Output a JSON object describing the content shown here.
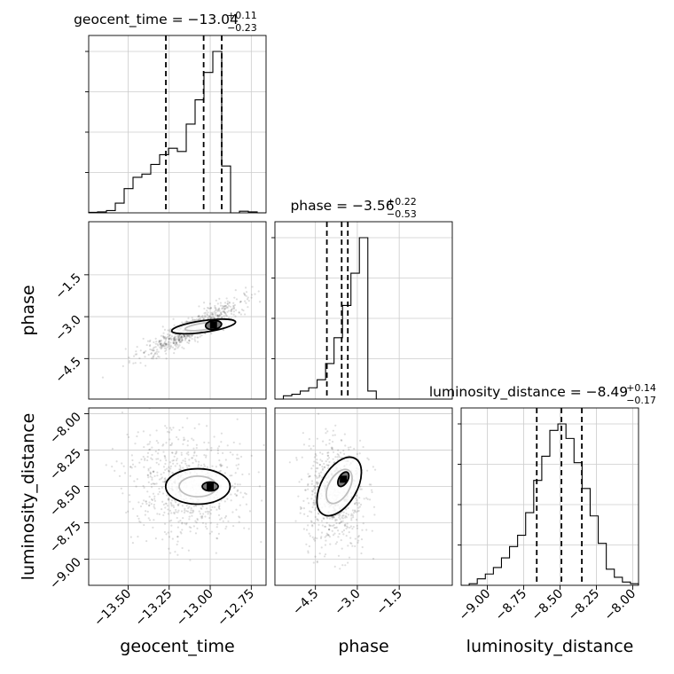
{
  "chart_data": {
    "type": "corner",
    "parameters": [
      {
        "name": "geocent_time",
        "axis_label": "geocent_time",
        "median": "−13.04",
        "plus": "+0.11",
        "minus": "−0.23",
        "range": [
          -13.74,
          -12.66
        ],
        "quantiles": [
          -13.27,
          -13.04,
          -12.93
        ],
        "ticks": [
          -13.5,
          -13.25,
          -13.0,
          -12.75
        ],
        "tick_labels": [
          "−13.50",
          "−13.25",
          "−13.00",
          "−12.75"
        ],
        "hist": [
          0.003,
          0.006,
          0.014,
          0.06,
          0.15,
          0.22,
          0.24,
          0.3,
          0.36,
          0.4,
          0.38,
          0.55,
          0.7,
          0.87,
          1.0,
          0.29,
          0.0,
          0.01,
          0.006,
          0.0
        ]
      },
      {
        "name": "phase",
        "axis_label": "phase",
        "median": "−3.56",
        "plus": "+0.22",
        "minus": "−0.53",
        "range": [
          -5.95,
          0.4
        ],
        "quantiles": [
          -4.09,
          -3.56,
          -3.34
        ],
        "ticks": [
          -4.5,
          -3.0,
          -1.5
        ],
        "tick_labels": [
          "−4.5",
          "−3.0",
          "−1.5"
        ],
        "hist": [
          0.0,
          0.02,
          0.03,
          0.05,
          0.07,
          0.12,
          0.22,
          0.38,
          0.58,
          0.78,
          1.0,
          0.05,
          0.0,
          0.0,
          0.0,
          0.0,
          0.0,
          0.0,
          0.0,
          0.0,
          0.0
        ]
      },
      {
        "name": "luminosity_distance",
        "axis_label": "luminosity_distance",
        "median": "−8.49",
        "plus": "+0.14",
        "minus": "−0.17",
        "range": [
          -9.18,
          -7.96
        ],
        "quantiles": [
          -8.66,
          -8.49,
          -8.35
        ],
        "ticks": [
          -9.0,
          -8.75,
          -8.5,
          -8.25,
          -8.0
        ],
        "tick_labels": [
          "−9.00",
          "−8.75",
          "−8.50",
          "−8.25",
          "−8.00"
        ],
        "hist": [
          0.0,
          0.01,
          0.04,
          0.07,
          0.11,
          0.17,
          0.24,
          0.31,
          0.45,
          0.65,
          0.8,
          0.96,
          1.0,
          0.91,
          0.76,
          0.6,
          0.43,
          0.26,
          0.1,
          0.05,
          0.02,
          0.01
        ]
      }
    ],
    "grid": true,
    "points_2d": {
      "phase_vs_geocent_time": {
        "mean": [
          -13.1,
          -3.4
        ],
        "peak": [
          -12.98,
          -3.3
        ]
      },
      "luminosity_distance_vs_geocent_time": {
        "mean": [
          -13.15,
          -8.5
        ],
        "peak": [
          -13.0,
          -8.5
        ]
      },
      "luminosity_distance_vs_phase": {
        "mean": [
          -3.8,
          -8.55
        ],
        "peak": [
          -3.5,
          -8.45
        ]
      }
    }
  }
}
